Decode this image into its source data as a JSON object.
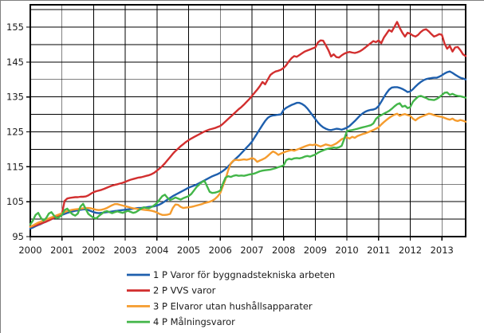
{
  "chart_data": {
    "type": "line",
    "title": "",
    "xlabel": "",
    "ylabel": "",
    "grid": true,
    "legend_position": "bottom-left",
    "x_unit": "month",
    "x_start_year": 2000,
    "points_per_series": 166,
    "x_tick_labels": [
      "2000",
      "2001",
      "2002",
      "2003",
      "2004",
      "2005",
      "2006",
      "2007",
      "2008",
      "2009",
      "2010",
      "2011",
      "2012",
      "2013"
    ],
    "y_tick_labels": [
      "95",
      "105",
      "115",
      "125",
      "135",
      "145",
      "155"
    ],
    "y_ticks_labeled": [
      95,
      105,
      115,
      125,
      135,
      145,
      155
    ],
    "y_gridline_step": 5,
    "ylim": [
      95,
      161.4
    ],
    "series": [
      {
        "name": "1 P Varor för byggnadstekniska arbeten",
        "color": "#1e5fad",
        "values": [
          97.3,
          97.6,
          98.0,
          98.3,
          98.6,
          99.0,
          99.3,
          99.7,
          100.0,
          100.3,
          100.7,
          101.0,
          101.2,
          101.5,
          101.8,
          102.0,
          102.2,
          102.4,
          102.5,
          102.7,
          102.8,
          102.8,
          102.6,
          102.3,
          102.0,
          101.8,
          101.7,
          101.8,
          101.9,
          102.0,
          102.1,
          102.2,
          102.3,
          102.4,
          102.5,
          102.6,
          102.7,
          102.8,
          102.9,
          103.0,
          103.1,
          103.2,
          103.2,
          103.3,
          103.4,
          103.5,
          103.6,
          103.7,
          103.9,
          104.2,
          104.6,
          105.1,
          105.6,
          106.1,
          106.6,
          107.0,
          107.4,
          107.8,
          108.2,
          108.6,
          109.0,
          109.3,
          109.6,
          109.9,
          110.3,
          110.7,
          111.1,
          111.5,
          111.9,
          112.3,
          112.6,
          112.9,
          113.3,
          113.8,
          114.4,
          115.1,
          115.9,
          116.7,
          117.4,
          118.1,
          118.9,
          119.7,
          120.5,
          121.3,
          122.2,
          123.4,
          124.6,
          125.8,
          127.0,
          128.1,
          129.0,
          129.5,
          129.7,
          129.8,
          129.9,
          130.0,
          131.3,
          131.9,
          132.3,
          132.7,
          133.0,
          133.3,
          133.3,
          133.0,
          132.5,
          131.7,
          130.7,
          129.7,
          128.7,
          127.7,
          126.9,
          126.3,
          125.9,
          125.6,
          125.5,
          125.7,
          125.9,
          125.8,
          125.6,
          125.9,
          126.2,
          126.7,
          127.4,
          128.1,
          128.9,
          129.7,
          130.3,
          130.8,
          131.1,
          131.3,
          131.4,
          131.7,
          132.4,
          133.6,
          134.9,
          136.1,
          137.1,
          137.7,
          137.8,
          137.8,
          137.6,
          137.3,
          136.9,
          136.4,
          136.6,
          137.2,
          138.0,
          138.7,
          139.3,
          139.8,
          140.1,
          140.3,
          140.4,
          140.5,
          140.5,
          140.8,
          141.2,
          141.7,
          142.1,
          142.3,
          141.9,
          141.4,
          140.9,
          140.5,
          140.3,
          140.0
        ]
      },
      {
        "name": "2 P VVS varor",
        "color": "#d22f2f",
        "values": [
          97.8,
          98.0,
          98.2,
          98.5,
          98.7,
          99.0,
          99.3,
          99.6,
          100.0,
          100.4,
          100.8,
          101.2,
          101.6,
          105.2,
          105.9,
          106.1,
          106.2,
          106.3,
          106.3,
          106.4,
          106.4,
          106.5,
          106.8,
          107.3,
          107.7,
          108.0,
          108.2,
          108.4,
          108.7,
          109.0,
          109.3,
          109.6,
          109.8,
          110.0,
          110.2,
          110.4,
          110.7,
          111.0,
          111.3,
          111.5,
          111.7,
          111.9,
          112.0,
          112.2,
          112.4,
          112.6,
          112.9,
          113.3,
          113.9,
          114.5,
          115.2,
          116.0,
          116.9,
          117.8,
          118.7,
          119.5,
          120.2,
          120.9,
          121.5,
          122.1,
          122.6,
          123.1,
          123.5,
          123.9,
          124.3,
          124.7,
          125.1,
          125.4,
          125.7,
          125.9,
          126.1,
          126.4,
          126.7,
          127.3,
          128.0,
          128.7,
          129.4,
          130.1,
          130.8,
          131.5,
          132.1,
          132.8,
          133.6,
          134.4,
          135.3,
          136.2,
          137.1,
          138.1,
          139.3,
          138.6,
          140.0,
          141.3,
          141.9,
          142.3,
          142.5,
          142.8,
          143.3,
          144.1,
          145.2,
          146.1,
          146.7,
          146.5,
          147.0,
          147.5,
          148.0,
          148.3,
          148.6,
          148.9,
          149.2,
          150.6,
          151.2,
          151.1,
          149.8,
          148.4,
          146.6,
          147.2,
          146.4,
          146.3,
          146.9,
          147.4,
          147.7,
          147.9,
          147.7,
          147.6,
          147.8,
          148.1,
          148.6,
          149.2,
          149.8,
          150.4,
          151.0,
          150.7,
          151.2,
          150.4,
          152.0,
          153.1,
          154.2,
          153.7,
          155.1,
          156.5,
          154.8,
          153.4,
          152.3,
          153.4,
          153.1,
          152.6,
          152.3,
          152.8,
          153.6,
          154.2,
          154.4,
          153.8,
          153.0,
          152.3,
          152.6,
          153.0,
          152.8,
          150.3,
          148.8,
          149.6,
          148.0,
          149.2,
          149.3,
          148.4,
          147.2,
          146.7
        ]
      },
      {
        "name": "3 P Elvaror utan hushållsapparater",
        "color": "#f59c2e",
        "values": [
          97.8,
          98.2,
          98.6,
          99.0,
          99.3,
          99.6,
          99.9,
          100.2,
          100.5,
          100.8,
          101.1,
          101.4,
          101.7,
          102.0,
          102.3,
          102.5,
          102.7,
          102.8,
          102.9,
          103.0,
          103.1,
          103.2,
          103.2,
          103.1,
          102.9,
          102.7,
          102.6,
          102.7,
          102.9,
          103.2,
          103.6,
          104.0,
          104.3,
          104.3,
          104.1,
          103.9,
          103.7,
          103.5,
          103.3,
          103.1,
          103.0,
          102.9,
          102.8,
          102.7,
          102.6,
          102.5,
          102.4,
          102.2,
          101.9,
          101.5,
          101.2,
          101.2,
          101.3,
          101.5,
          103.2,
          104.2,
          104.1,
          103.5,
          103.2,
          103.3,
          103.4,
          103.5,
          103.7,
          103.9,
          104.1,
          104.3,
          104.6,
          104.8,
          105.0,
          105.3,
          105.8,
          106.5,
          107.5,
          109.5,
          111.5,
          114.0,
          116.0,
          116.8,
          117.0,
          116.9,
          117.0,
          117.1,
          117.0,
          117.2,
          117.5,
          117.2,
          116.4,
          116.8,
          117.1,
          117.5,
          118.1,
          118.8,
          119.4,
          119.0,
          118.4,
          118.8,
          119.1,
          119.4,
          119.6,
          119.8,
          119.6,
          119.9,
          120.2,
          120.5,
          120.8,
          121.1,
          121.3,
          121.2,
          121.4,
          121.1,
          120.8,
          121.1,
          121.4,
          121.2,
          121.0,
          121.3,
          121.7,
          122.3,
          122.9,
          123.2,
          123.4,
          123.1,
          123.6,
          123.3,
          123.8,
          124.1,
          124.4,
          124.6,
          124.9,
          125.2,
          125.5,
          125.9,
          126.3,
          127.1,
          127.8,
          128.4,
          129.0,
          129.5,
          129.9,
          130.2,
          129.6,
          129.9,
          130.1,
          129.8,
          129.6,
          128.8,
          128.3,
          128.9,
          129.3,
          129.6,
          129.9,
          130.2,
          130.1,
          129.8,
          129.6,
          129.4,
          129.3,
          129.0,
          128.7,
          128.5,
          128.8,
          128.3,
          128.1,
          128.4,
          128.2,
          127.9
        ]
      },
      {
        "name": "4 P Målningsvaror",
        "color": "#43b649",
        "values": [
          98.5,
          99.6,
          101.2,
          101.8,
          100.4,
          99.6,
          100.3,
          101.6,
          102.0,
          101.0,
          100.3,
          100.6,
          101.2,
          102.6,
          103.0,
          102.1,
          101.4,
          101.0,
          101.6,
          103.6,
          104.4,
          102.9,
          101.5,
          100.9,
          100.4,
          100.2,
          100.9,
          101.5,
          102.1,
          102.3,
          102.0,
          101.7,
          102.0,
          102.2,
          102.0,
          101.8,
          102.1,
          102.4,
          102.1,
          101.8,
          102.0,
          102.5,
          103.0,
          103.4,
          103.2,
          103.1,
          103.5,
          104.0,
          104.6,
          105.6,
          106.6,
          107.0,
          106.1,
          105.5,
          105.8,
          106.2,
          105.9,
          105.6,
          106.0,
          106.3,
          106.6,
          107.2,
          108.2,
          109.2,
          109.9,
          110.6,
          111.0,
          109.4,
          107.8,
          107.5,
          107.6,
          107.8,
          108.2,
          110.2,
          111.9,
          112.3,
          112.1,
          112.4,
          112.6,
          112.4,
          112.5,
          112.4,
          112.6,
          112.8,
          112.9,
          113.1,
          113.4,
          113.7,
          113.9,
          114.0,
          114.1,
          114.2,
          114.4,
          114.6,
          114.9,
          115.1,
          115.4,
          116.9,
          117.3,
          117.1,
          117.4,
          117.5,
          117.4,
          117.6,
          117.9,
          118.1,
          117.9,
          118.2,
          118.5,
          119.0,
          119.4,
          119.7,
          120.0,
          120.2,
          120.3,
          120.5,
          120.4,
          120.6,
          121.0,
          123.0,
          125.2,
          125.4,
          125.5,
          125.7,
          125.9,
          126.1,
          126.3,
          126.5,
          126.7,
          126.9,
          127.4,
          128.7,
          129.4,
          129.8,
          130.2,
          130.6,
          131.0,
          131.6,
          132.3,
          132.9,
          133.2,
          132.2,
          132.5,
          131.8,
          132.1,
          133.6,
          134.4,
          135.1,
          135.3,
          135.0,
          134.7,
          134.3,
          134.2,
          134.1,
          134.4,
          134.9,
          135.5,
          136.2,
          136.3,
          135.6,
          135.9,
          135.5,
          135.3,
          135.2,
          135.0,
          134.8
        ]
      }
    ]
  }
}
